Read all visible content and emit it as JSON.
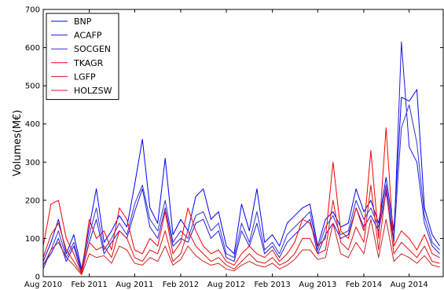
{
  "chart_data": {
    "type": "line",
    "title": "",
    "xlabel": "",
    "ylabel": "Volumes(M€)",
    "ylim": [
      0,
      700
    ],
    "yticks": [
      0,
      100,
      200,
      300,
      400,
      500,
      600,
      700
    ],
    "xlim": [
      "2010-08-01",
      "2014-12-15"
    ],
    "xticks": [
      {
        "date": "2010-08-01",
        "label": "Aug 2010"
      },
      {
        "date": "2011-02-01",
        "label": "Feb 2011"
      },
      {
        "date": "2011-08-01",
        "label": "Aug 2011"
      },
      {
        "date": "2012-02-01",
        "label": "Feb 2012"
      },
      {
        "date": "2012-08-01",
        "label": "Aug 2012"
      },
      {
        "date": "2013-02-01",
        "label": "Feb 2013"
      },
      {
        "date": "2013-08-01",
        "label": "Aug 2013"
      },
      {
        "date": "2014-02-01",
        "label": "Feb 2014"
      },
      {
        "date": "2014-08-01",
        "label": "Aug 2014"
      }
    ],
    "grid": false,
    "legend_position": "top-left",
    "series": [
      {
        "name": "BNP",
        "color": "#0000ff",
        "x": [
          "2010-08-01",
          "2010-09-01",
          "2010-10-01",
          "2010-11-01",
          "2010-12-01",
          "2011-01-01",
          "2011-02-01",
          "2011-03-01",
          "2011-04-01",
          "2011-05-01",
          "2011-06-01",
          "2011-07-01",
          "2011-08-01",
          "2011-09-01",
          "2011-10-01",
          "2011-11-01",
          "2011-12-01",
          "2012-01-01",
          "2012-02-01",
          "2012-03-01",
          "2012-04-01",
          "2012-05-01",
          "2012-06-01",
          "2012-07-01",
          "2012-08-01",
          "2012-09-01",
          "2012-10-01",
          "2012-11-01",
          "2012-12-01",
          "2013-01-01",
          "2013-02-01",
          "2013-03-01",
          "2013-04-01",
          "2013-05-01",
          "2013-06-01",
          "2013-07-01",
          "2013-08-01",
          "2013-09-01",
          "2013-10-01",
          "2013-11-01",
          "2013-12-01",
          "2014-01-01",
          "2014-02-01",
          "2014-03-01",
          "2014-04-01",
          "2014-05-01",
          "2014-06-01",
          "2014-07-01",
          "2014-08-01",
          "2014-09-01",
          "2014-10-01",
          "2014-11-01",
          "2014-12-01"
        ],
        "values": [
          40,
          90,
          150,
          60,
          110,
          20,
          130,
          230,
          90,
          120,
          160,
          130,
          240,
          360,
          180,
          140,
          310,
          110,
          150,
          120,
          210,
          230,
          150,
          170,
          80,
          60,
          190,
          120,
          230,
          90,
          110,
          80,
          140,
          160,
          180,
          190,
          80,
          150,
          170,
          130,
          140,
          230,
          170,
          200,
          140,
          260,
          120,
          470,
          460,
          490,
          180,
          110,
          80
        ]
      },
      {
        "name": "ACAFP",
        "color": "#1a1adf",
        "x": [
          "2010-08-01",
          "2010-09-01",
          "2010-10-01",
          "2010-11-01",
          "2010-12-01",
          "2011-01-01",
          "2011-02-01",
          "2011-03-01",
          "2011-04-01",
          "2011-05-01",
          "2011-06-01",
          "2011-07-01",
          "2011-08-01",
          "2011-09-01",
          "2011-10-01",
          "2011-11-01",
          "2011-12-01",
          "2012-01-01",
          "2012-02-01",
          "2012-03-01",
          "2012-04-01",
          "2012-05-01",
          "2012-06-01",
          "2012-07-01",
          "2012-08-01",
          "2012-09-01",
          "2012-10-01",
          "2012-11-01",
          "2012-12-01",
          "2013-01-01",
          "2013-02-01",
          "2013-03-01",
          "2013-04-01",
          "2013-05-01",
          "2013-06-01",
          "2013-07-01",
          "2013-08-01",
          "2013-09-01",
          "2013-10-01",
          "2013-11-01",
          "2013-12-01",
          "2014-01-01",
          "2014-02-01",
          "2014-03-01",
          "2014-04-01",
          "2014-05-01",
          "2014-06-01",
          "2014-07-01",
          "2014-08-01",
          "2014-09-01",
          "2014-10-01",
          "2014-11-01",
          "2014-12-01"
        ],
        "values": [
          30,
          60,
          100,
          40,
          80,
          10,
          90,
          150,
          60,
          90,
          120,
          100,
          170,
          230,
          130,
          100,
          180,
          80,
          100,
          90,
          140,
          150,
          100,
          120,
          50,
          40,
          120,
          80,
          140,
          60,
          80,
          50,
          90,
          110,
          130,
          150,
          60,
          110,
          140,
          100,
          110,
          180,
          130,
          160,
          120,
          220,
          90,
          615,
          340,
          300,
          140,
          80,
          60
        ]
      },
      {
        "name": "SOCGEN",
        "color": "#3333cc",
        "x": [
          "2010-08-01",
          "2010-09-01",
          "2010-10-01",
          "2010-11-01",
          "2010-12-01",
          "2011-01-01",
          "2011-02-01",
          "2011-03-01",
          "2011-04-01",
          "2011-05-01",
          "2011-06-01",
          "2011-07-01",
          "2011-08-01",
          "2011-09-01",
          "2011-10-01",
          "2011-11-01",
          "2011-12-01",
          "2012-01-01",
          "2012-02-01",
          "2012-03-01",
          "2012-04-01",
          "2012-05-01",
          "2012-06-01",
          "2012-07-01",
          "2012-08-01",
          "2012-09-01",
          "2012-10-01",
          "2012-11-01",
          "2012-12-01",
          "2013-01-01",
          "2013-02-01",
          "2013-03-01",
          "2013-04-01",
          "2013-05-01",
          "2013-06-01",
          "2013-07-01",
          "2013-08-01",
          "2013-09-01",
          "2013-10-01",
          "2013-11-01",
          "2013-12-01",
          "2014-01-01",
          "2014-02-01",
          "2014-03-01",
          "2014-04-01",
          "2014-05-01",
          "2014-06-01",
          "2014-07-01",
          "2014-08-01",
          "2014-09-01",
          "2014-10-01",
          "2014-11-01",
          "2014-12-01"
        ],
        "values": [
          20,
          70,
          120,
          50,
          90,
          15,
          110,
          180,
          70,
          100,
          140,
          110,
          190,
          240,
          150,
          120,
          200,
          90,
          120,
          100,
          160,
          170,
          120,
          140,
          60,
          50,
          140,
          90,
          170,
          70,
          90,
          60,
          110,
          130,
          150,
          170,
          70,
          130,
          160,
          110,
          120,
          200,
          150,
          180,
          130,
          240,
          100,
          390,
          450,
          350,
          160,
          90,
          70
        ]
      },
      {
        "name": "TKAGR",
        "color": "#ff0000",
        "x": [
          "2010-08-01",
          "2010-09-01",
          "2010-10-01",
          "2010-11-01",
          "2010-12-01",
          "2011-01-01",
          "2011-02-01",
          "2011-03-01",
          "2011-04-01",
          "2011-05-01",
          "2011-06-01",
          "2011-07-01",
          "2011-08-01",
          "2011-09-01",
          "2011-10-01",
          "2011-11-01",
          "2011-12-01",
          "2012-01-01",
          "2012-02-01",
          "2012-03-01",
          "2012-04-01",
          "2012-05-01",
          "2012-06-01",
          "2012-07-01",
          "2012-08-01",
          "2012-09-01",
          "2012-10-01",
          "2012-11-01",
          "2012-12-01",
          "2013-01-01",
          "2013-02-01",
          "2013-03-01",
          "2013-04-01",
          "2013-05-01",
          "2013-06-01",
          "2013-07-01",
          "2013-08-01",
          "2013-09-01",
          "2013-10-01",
          "2013-11-01",
          "2013-12-01",
          "2014-01-01",
          "2014-02-01",
          "2014-03-01",
          "2014-04-01",
          "2014-05-01",
          "2014-06-01",
          "2014-07-01",
          "2014-08-01",
          "2014-09-01",
          "2014-10-01",
          "2014-11-01",
          "2014-12-01"
        ],
        "values": [
          80,
          190,
          200,
          100,
          60,
          10,
          150,
          100,
          120,
          70,
          180,
          150,
          70,
          60,
          100,
          80,
          170,
          60,
          90,
          180,
          120,
          80,
          60,
          70,
          40,
          30,
          60,
          80,
          60,
          50,
          70,
          40,
          60,
          90,
          150,
          140,
          80,
          100,
          300,
          120,
          100,
          180,
          120,
          330,
          100,
          390,
          80,
          120,
          100,
          70,
          110,
          60,
          50
        ]
      },
      {
        "name": "LGFP",
        "color": "#e01010",
        "x": [
          "2010-08-01",
          "2010-09-01",
          "2010-10-01",
          "2010-11-01",
          "2010-12-01",
          "2011-01-01",
          "2011-02-01",
          "2011-03-01",
          "2011-04-01",
          "2011-05-01",
          "2011-06-01",
          "2011-07-01",
          "2011-08-01",
          "2011-09-01",
          "2011-10-01",
          "2011-11-01",
          "2011-12-01",
          "2012-01-01",
          "2012-02-01",
          "2012-03-01",
          "2012-04-01",
          "2012-05-01",
          "2012-06-01",
          "2012-07-01",
          "2012-08-01",
          "2012-09-01",
          "2012-10-01",
          "2012-11-01",
          "2012-12-01",
          "2013-01-01",
          "2013-02-01",
          "2013-03-01",
          "2013-04-01",
          "2013-05-01",
          "2013-06-01",
          "2013-07-01",
          "2013-08-01",
          "2013-09-01",
          "2013-10-01",
          "2013-11-01",
          "2013-12-01",
          "2014-01-01",
          "2014-02-01",
          "2014-03-01",
          "2014-04-01",
          "2014-05-01",
          "2014-06-01",
          "2014-07-01",
          "2014-08-01",
          "2014-09-01",
          "2014-10-01",
          "2014-11-01",
          "2014-12-01"
        ],
        "values": [
          50,
          110,
          140,
          70,
          40,
          8,
          90,
          70,
          80,
          50,
          120,
          100,
          50,
          40,
          70,
          60,
          120,
          40,
          60,
          120,
          80,
          60,
          40,
          50,
          30,
          20,
          40,
          60,
          40,
          35,
          50,
          30,
          40,
          60,
          100,
          100,
          60,
          70,
          200,
          90,
          70,
          130,
          90,
          240,
          70,
          230,
          60,
          90,
          70,
          50,
          80,
          40,
          35
        ]
      },
      {
        "name": "HOLZSW",
        "color": "#cc2222",
        "x": [
          "2010-08-01",
          "2010-09-01",
          "2010-10-01",
          "2010-11-01",
          "2010-12-01",
          "2011-01-01",
          "2011-02-01",
          "2011-03-01",
          "2011-04-01",
          "2011-05-01",
          "2011-06-01",
          "2011-07-01",
          "2011-08-01",
          "2011-09-01",
          "2011-10-01",
          "2011-11-01",
          "2011-12-01",
          "2012-01-01",
          "2012-02-01",
          "2012-03-01",
          "2012-04-01",
          "2012-05-01",
          "2012-06-01",
          "2012-07-01",
          "2012-08-01",
          "2012-09-01",
          "2012-10-01",
          "2012-11-01",
          "2012-12-01",
          "2013-01-01",
          "2013-02-01",
          "2013-03-01",
          "2013-04-01",
          "2013-05-01",
          "2013-06-01",
          "2013-07-01",
          "2013-08-01",
          "2013-09-01",
          "2013-10-01",
          "2013-11-01",
          "2013-12-01",
          "2014-01-01",
          "2014-02-01",
          "2014-03-01",
          "2014-04-01",
          "2014-05-01",
          "2014-06-01",
          "2014-07-01",
          "2014-08-01",
          "2014-09-01",
          "2014-10-01",
          "2014-11-01",
          "2014-12-01"
        ],
        "values": [
          30,
          70,
          90,
          50,
          30,
          5,
          60,
          50,
          55,
          35,
          80,
          70,
          35,
          30,
          50,
          40,
          80,
          30,
          45,
          80,
          55,
          40,
          30,
          35,
          20,
          15,
          30,
          40,
          30,
          25,
          35,
          20,
          30,
          45,
          70,
          70,
          45,
          50,
          140,
          60,
          50,
          90,
          60,
          150,
          50,
          150,
          40,
          60,
          50,
          35,
          55,
          30,
          25
        ]
      }
    ]
  }
}
